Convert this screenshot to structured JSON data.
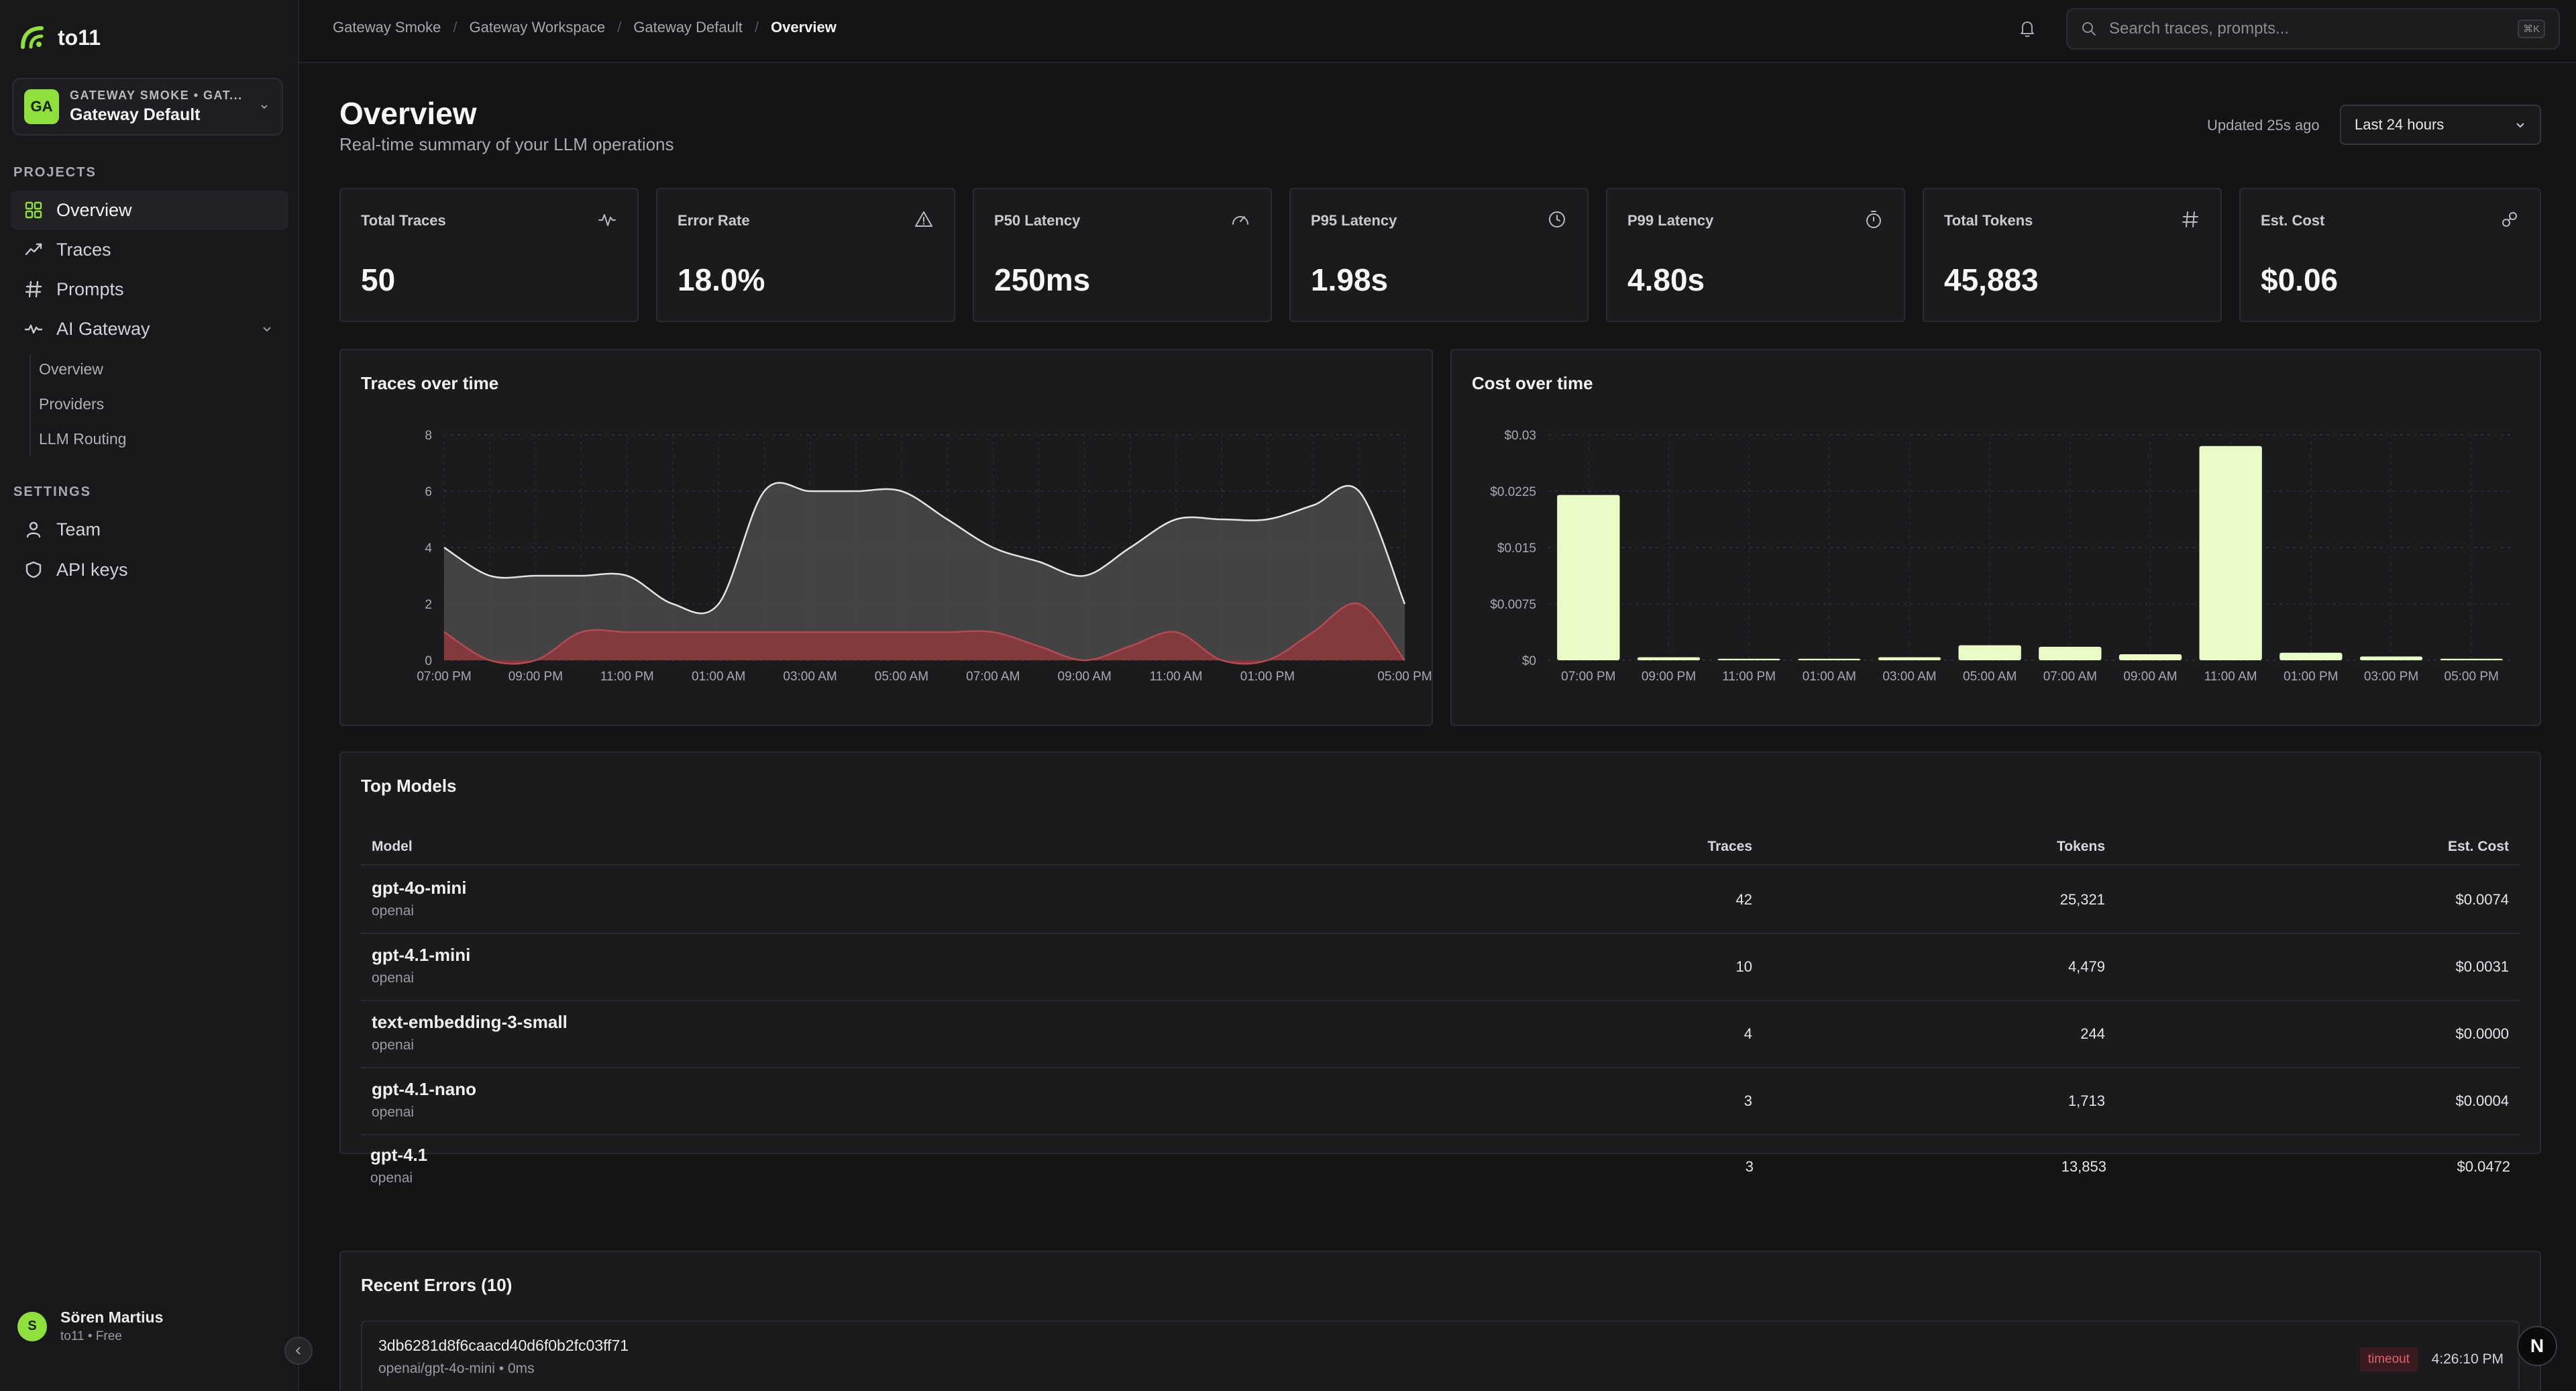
{
  "app": {
    "name": "to11"
  },
  "org": {
    "initials": "GA",
    "subtitle": "GATEWAY SMOKE • GAT...",
    "name": "Gateway Default"
  },
  "sidebar": {
    "projects_label": "PROJECTS",
    "settings_label": "SETTINGS",
    "items": [
      {
        "label": "Overview",
        "icon": "grid-icon"
      },
      {
        "label": "Traces",
        "icon": "trend-icon"
      },
      {
        "label": "Prompts",
        "icon": "hash-icon"
      },
      {
        "label": "AI Gateway",
        "icon": "pulse-icon"
      }
    ],
    "gateway_sub": [
      "Overview",
      "Providers",
      "LLM Routing"
    ],
    "settings": [
      {
        "label": "Team",
        "icon": "user-icon"
      },
      {
        "label": "API keys",
        "icon": "shield-icon"
      }
    ]
  },
  "user": {
    "initial": "S",
    "name": "Sören Martius",
    "plan": "to11 • Free"
  },
  "breadcrumb": [
    "Gateway Smoke",
    "Gateway Workspace",
    "Gateway Default",
    "Overview"
  ],
  "search": {
    "placeholder": "Search traces, prompts...",
    "shortcut": "⌘K"
  },
  "page": {
    "title": "Overview",
    "subtitle": "Real-time summary of your LLM operations",
    "updated": "Updated 25s ago",
    "range": "Last 24 hours"
  },
  "stats": [
    {
      "label": "Total Traces",
      "value": "50",
      "icon": "activity-icon"
    },
    {
      "label": "Error Rate",
      "value": "18.0%",
      "icon": "alert-triangle-icon"
    },
    {
      "label": "P50 Latency",
      "value": "250ms",
      "icon": "gauge-icon"
    },
    {
      "label": "P95 Latency",
      "value": "1.98s",
      "icon": "clock-icon"
    },
    {
      "label": "P99 Latency",
      "value": "4.80s",
      "icon": "timer-icon"
    },
    {
      "label": "Total Tokens",
      "value": "45,883",
      "icon": "hash-icon"
    },
    {
      "label": "Est. Cost",
      "value": "$0.06",
      "icon": "link-icon"
    }
  ],
  "colors": {
    "accent": "#8fe03a",
    "bar": "#eafcc5",
    "area_total": "#4a4a4a",
    "area_error": "#8a3a3e"
  },
  "chart_data": [
    {
      "type": "area",
      "title": "Traces over time",
      "x_labels": [
        "07:00 PM",
        "09:00 PM",
        "11:00 PM",
        "01:00 AM",
        "03:00 AM",
        "05:00 AM",
        "07:00 AM",
        "09:00 AM",
        "11:00 AM",
        "01:00 PM",
        "05:00 PM"
      ],
      "x": [
        "07:00 PM",
        "08:00 PM",
        "09:00 PM",
        "10:00 PM",
        "11:00 PM",
        "12:00 AM",
        "01:00 AM",
        "02:00 AM",
        "03:00 AM",
        "04:00 AM",
        "05:00 AM",
        "06:00 AM",
        "07:00 AM",
        "08:00 AM",
        "09:00 AM",
        "10:00 AM",
        "11:00 AM",
        "12:00 PM",
        "01:00 PM",
        "02:00 PM",
        "03:00 PM",
        "05:00 PM"
      ],
      "series": [
        {
          "values": [
            4,
            3,
            3,
            3,
            3,
            2,
            2,
            6,
            6,
            6,
            6,
            5,
            4,
            3.5,
            3,
            4,
            5,
            5,
            5,
            5.5,
            6,
            2
          ]
        },
        {
          "values": [
            1,
            0,
            0,
            1,
            1,
            1,
            1,
            1,
            1,
            1,
            1,
            1,
            1,
            0.5,
            0,
            0.5,
            1,
            0,
            0,
            1,
            2,
            0
          ]
        }
      ],
      "y_ticks": [
        "0",
        "2",
        "4",
        "6",
        "8"
      ],
      "ylim": [
        0,
        8
      ],
      "grid": true
    },
    {
      "type": "bar",
      "title": "Cost over time",
      "categories": [
        "07:00 PM",
        "09:00 PM",
        "11:00 PM",
        "01:00 AM",
        "03:00 AM",
        "05:00 AM",
        "07:00 AM",
        "09:00 AM",
        "11:00 AM",
        "01:00 PM",
        "03:00 PM",
        "05:00 PM"
      ],
      "values": [
        0.022,
        0.0004,
        0.0002,
        0.0002,
        0.0004,
        0.002,
        0.0018,
        0.0008,
        0.0285,
        0.001,
        0.0005,
        0.0002
      ],
      "y_ticks": [
        "$0",
        "$0.0075",
        "$0.015",
        "$0.0225",
        "$0.03"
      ],
      "ylim": [
        0,
        0.03
      ],
      "grid": true
    }
  ],
  "top_models": {
    "title": "Top Models",
    "columns": [
      "Model",
      "Traces",
      "Tokens",
      "Est. Cost"
    ],
    "rows": [
      {
        "model": "gpt-4o-mini",
        "provider": "openai",
        "traces": "42",
        "tokens": "25,321",
        "cost": "$0.0074"
      },
      {
        "model": "gpt-4.1-mini",
        "provider": "openai",
        "traces": "10",
        "tokens": "4,479",
        "cost": "$0.0031"
      },
      {
        "model": "text-embedding-3-small",
        "provider": "openai",
        "traces": "4",
        "tokens": "244",
        "cost": "$0.0000"
      },
      {
        "model": "gpt-4.1-nano",
        "provider": "openai",
        "traces": "3",
        "tokens": "1,713",
        "cost": "$0.0004"
      },
      {
        "model": "gpt-4.1",
        "provider": "openai",
        "traces": "3",
        "tokens": "13,853",
        "cost": "$0.0472"
      }
    ]
  },
  "recent_errors": {
    "title": "Recent Errors (10)",
    "items": [
      {
        "id": "3db6281d8f6caacd40d6f0b2fc03ff71",
        "meta": "openai/gpt-4o-mini • 0ms",
        "badge": "timeout",
        "time": "4:26:10 PM"
      }
    ]
  },
  "floating_badge": "N"
}
